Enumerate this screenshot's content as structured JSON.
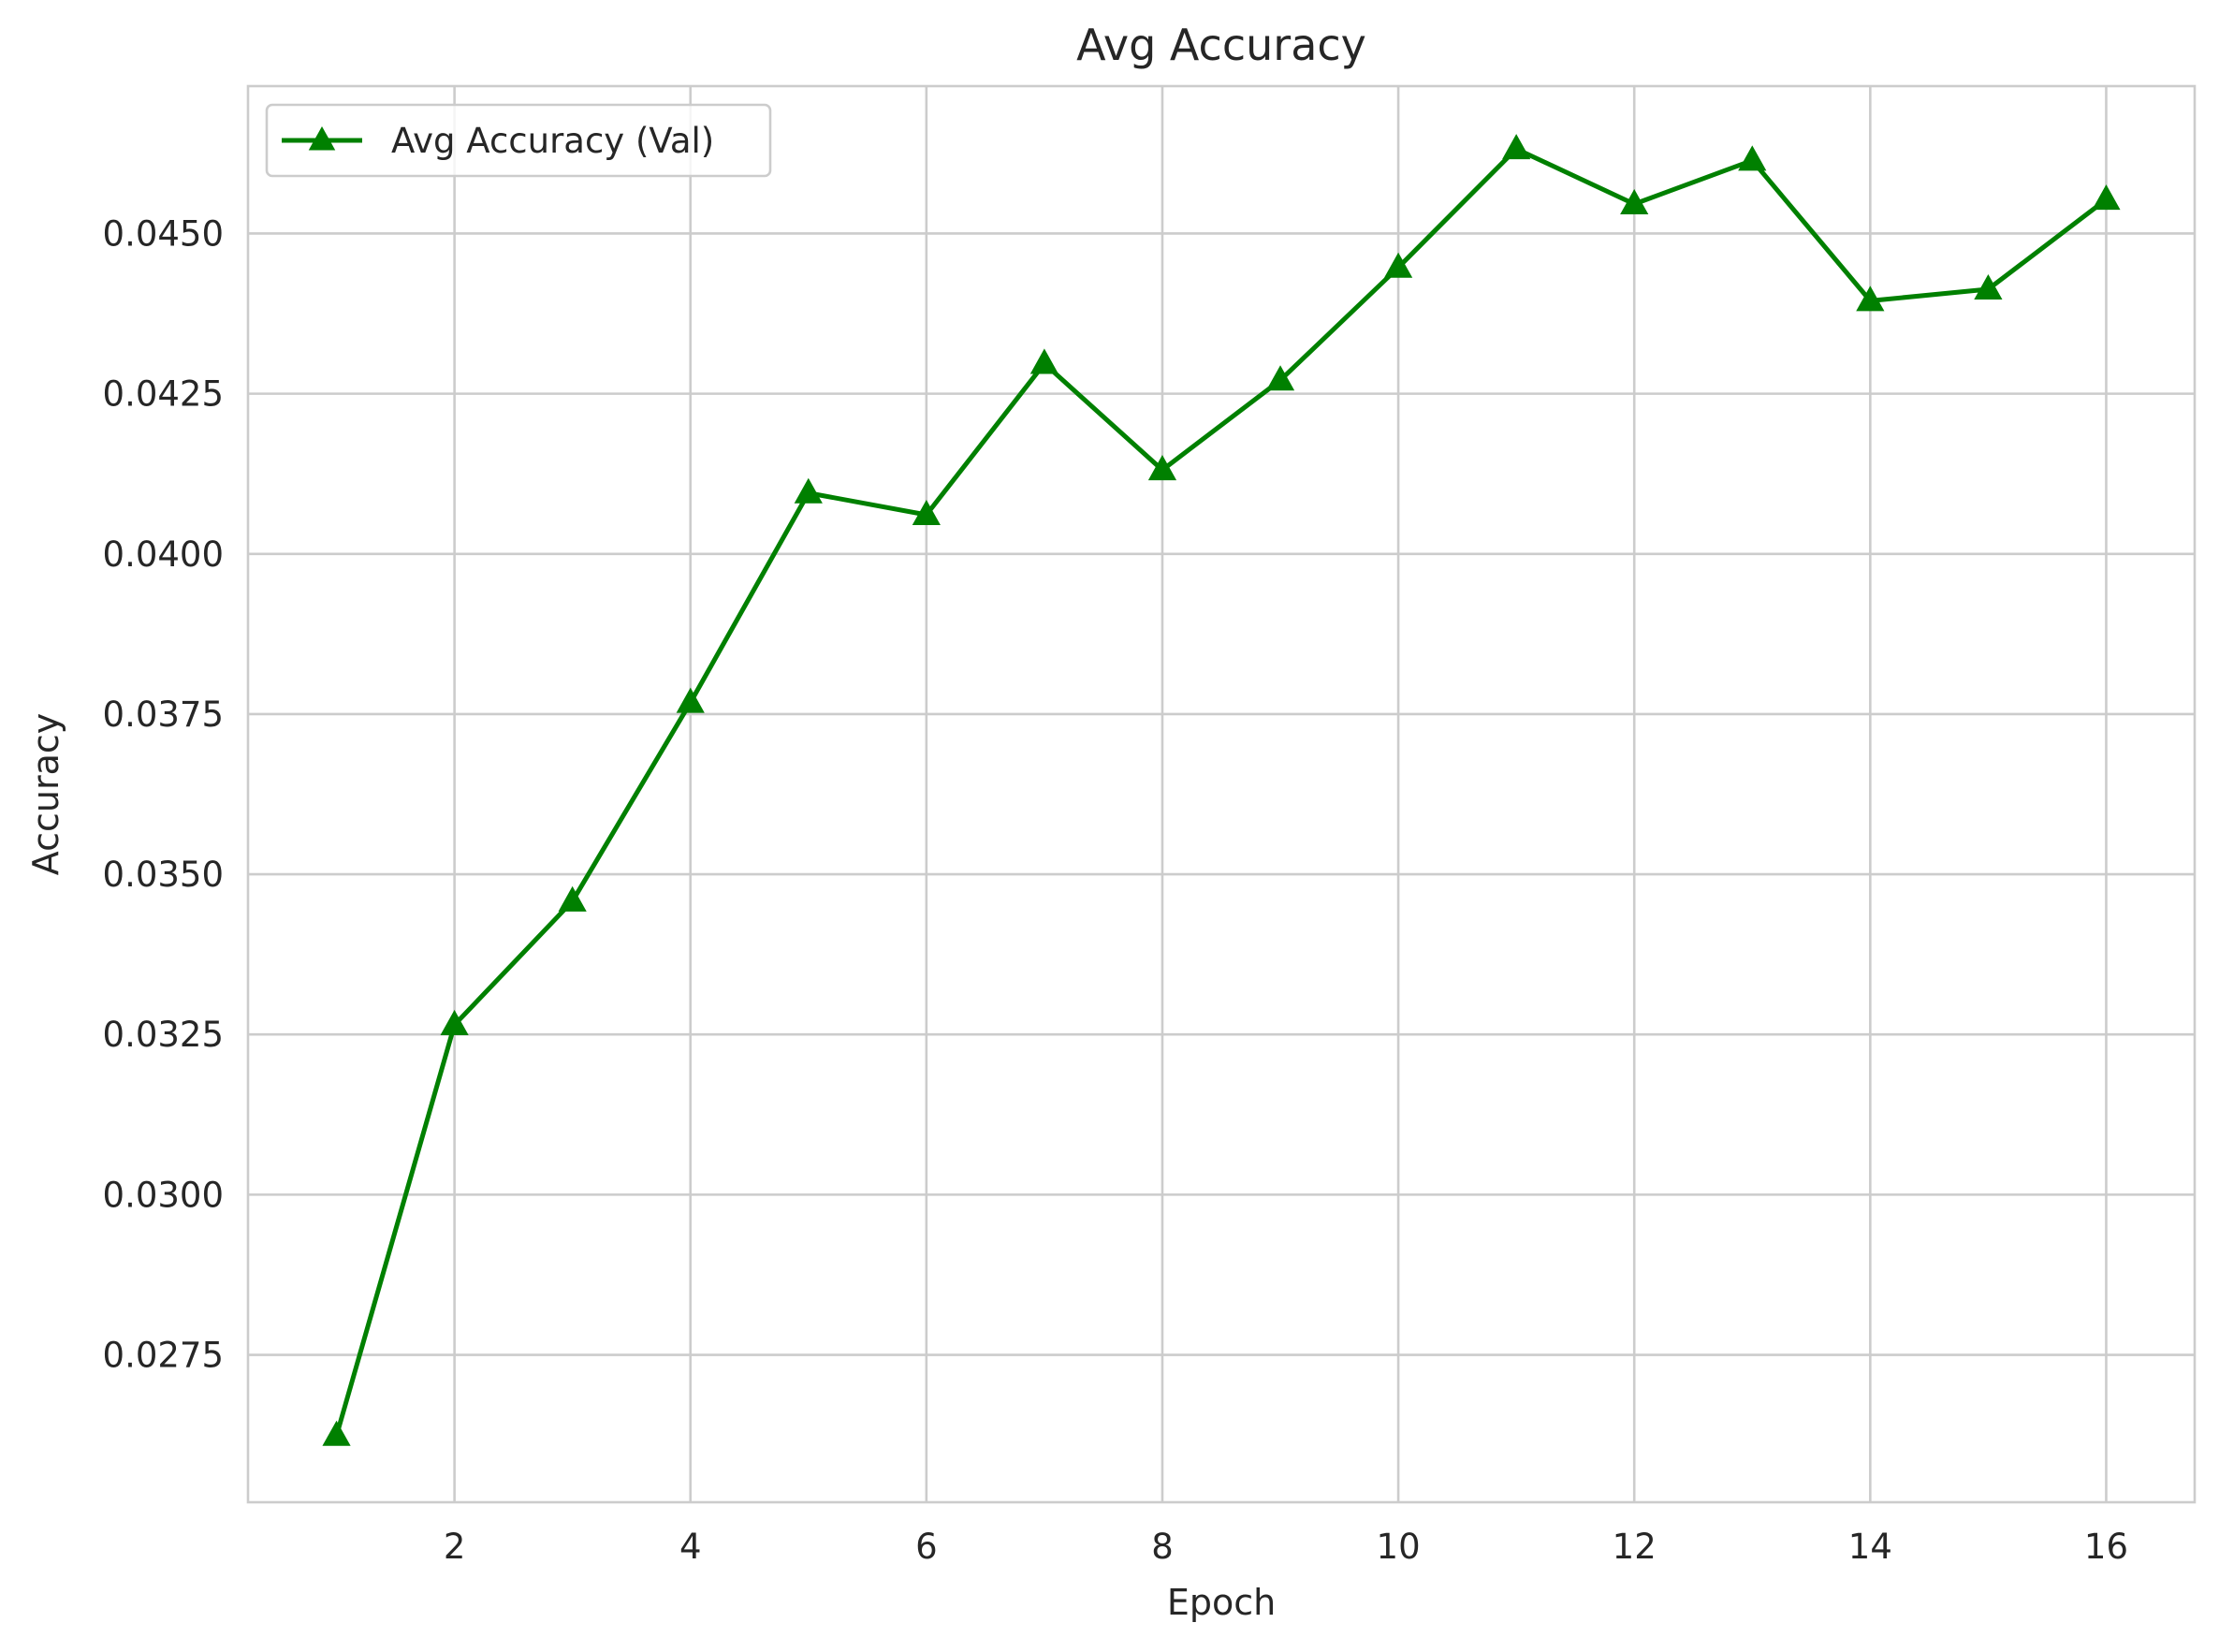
{
  "chart_data": {
    "type": "line",
    "title": "Avg Accuracy",
    "xlabel": "Epoch",
    "ylabel": "Accuracy",
    "xlim": [
      0.25,
      16.75
    ],
    "ylim": [
      0.0252,
      0.0473
    ],
    "x_ticks": [
      2,
      4,
      6,
      8,
      10,
      12,
      14,
      16
    ],
    "x_tick_labels": [
      "2",
      "4",
      "6",
      "8",
      "10",
      "12",
      "14",
      "16"
    ],
    "y_ticks": [
      0.0275,
      0.03,
      0.0325,
      0.035,
      0.0375,
      0.04,
      0.0425,
      0.045
    ],
    "y_tick_labels": [
      "0.0275",
      "0.0300",
      "0.0325",
      "0.0350",
      "0.0375",
      "0.0400",
      "0.0425",
      "0.0450"
    ],
    "grid": true,
    "legend_position": "top-left",
    "series": [
      {
        "name": "Avg Accuracy (Val)",
        "color": "#008000",
        "marker": "triangle-up",
        "x": [
          1,
          2,
          3,
          4,
          5,
          6,
          7,
          8,
          9,
          10,
          11,
          12,
          13,
          14,
          15,
          16
        ],
        "y": [
          0.02624,
          0.03265,
          0.03458,
          0.03768,
          0.04095,
          0.04061,
          0.04297,
          0.04131,
          0.04271,
          0.04447,
          0.04632,
          0.04546,
          0.04614,
          0.04395,
          0.04413,
          0.04553
        ]
      }
    ]
  }
}
